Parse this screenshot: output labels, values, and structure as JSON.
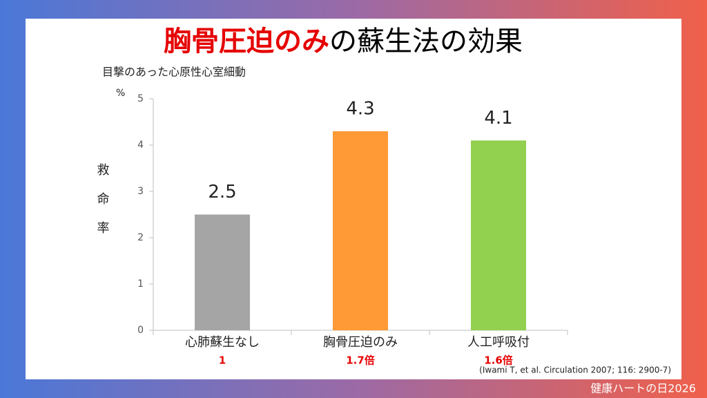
{
  "header": {
    "title_highlight": "胸骨圧迫のみ",
    "title_rest": "の蘇生法の効果"
  },
  "chart_data": {
    "type": "bar",
    "subtitle": "目撃のあった心原性心室細動",
    "y_unit": "%",
    "y_label": "救命率",
    "categories": [
      "心肺蘇生なし",
      "胸骨圧迫のみ",
      "人工呼吸付"
    ],
    "values": [
      2.5,
      4.3,
      4.1
    ],
    "colors": [
      "#a5a5a5",
      "#ff9a36",
      "#92d050"
    ],
    "ratios": [
      "1",
      "1.7倍",
      "1.6倍"
    ],
    "ylim": [
      0,
      5
    ],
    "yticks": [
      0,
      1,
      2,
      3,
      4,
      5
    ]
  },
  "citation": "(Iwami T, et al. Circulation 2007; 116: 2900-7)",
  "footer": "健康ハートの日2026"
}
